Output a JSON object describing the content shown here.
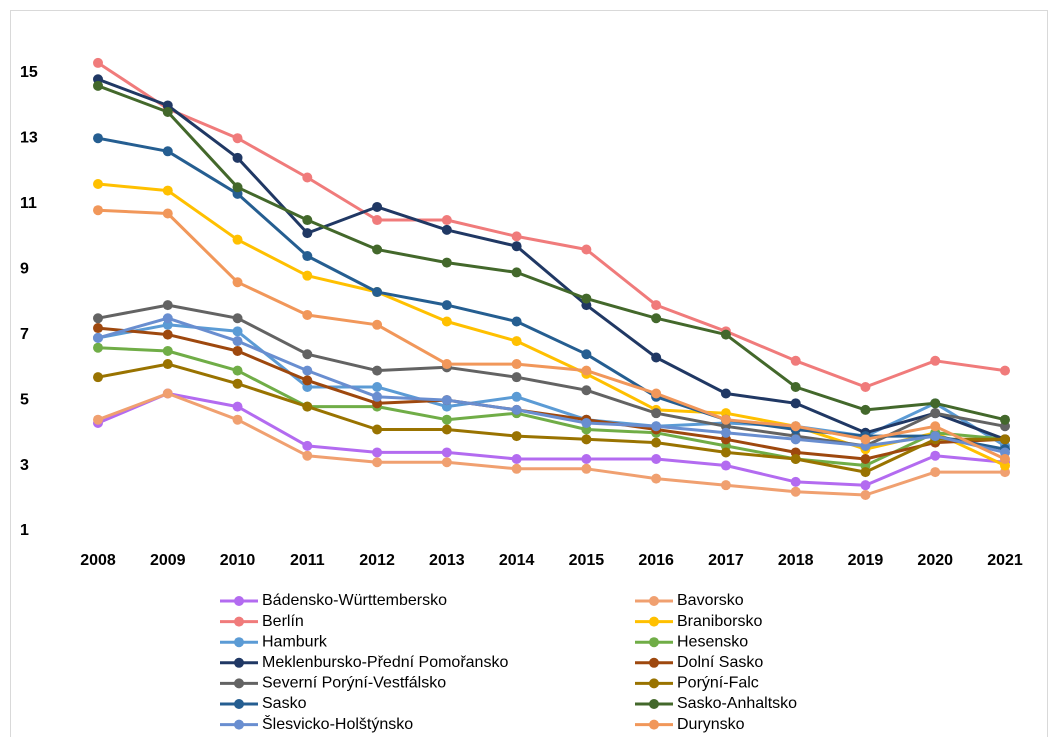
{
  "chart_data": {
    "type": "line",
    "categories": [
      "2008",
      "2009",
      "2010",
      "2011",
      "2012",
      "2013",
      "2014",
      "2015",
      "2016",
      "2017",
      "2018",
      "2019",
      "2020",
      "2021"
    ],
    "ylim": [
      1,
      16
    ],
    "yticks": [
      1,
      3,
      5,
      7,
      9,
      11,
      13,
      15
    ],
    "grid": false,
    "series": [
      {
        "name": "Bádensko-Württembersko",
        "color": "#b36bf0",
        "values": [
          4.3,
          5.2,
          4.8,
          3.6,
          3.4,
          3.4,
          3.2,
          3.2,
          3.2,
          3.0,
          2.5,
          2.4,
          3.3,
          3.1
        ]
      },
      {
        "name": "Bavorsko",
        "color": "#f0a070",
        "values": [
          4.4,
          5.2,
          4.4,
          3.3,
          3.1,
          3.1,
          2.9,
          2.9,
          2.6,
          2.4,
          2.2,
          2.1,
          2.8,
          2.8
        ]
      },
      {
        "name": "Berlín",
        "color": "#f07b7b",
        "values": [
          15.3,
          13.9,
          13.0,
          11.8,
          10.5,
          10.5,
          10.0,
          9.6,
          7.9,
          7.1,
          6.2,
          5.4,
          6.2,
          5.9
        ]
      },
      {
        "name": "Braniborsko",
        "color": "#ffc000",
        "values": [
          11.6,
          11.4,
          9.9,
          8.8,
          8.3,
          7.4,
          6.8,
          5.8,
          4.7,
          4.6,
          4.2,
          3.5,
          4.0,
          3.0
        ]
      },
      {
        "name": "Hamburk",
        "color": "#5b9bd5",
        "values": [
          6.9,
          7.3,
          7.1,
          5.4,
          5.4,
          4.8,
          5.1,
          4.4,
          4.2,
          4.3,
          4.2,
          3.9,
          4.9,
          3.6
        ]
      },
      {
        "name": "Hesensko",
        "color": "#70ad47",
        "values": [
          6.6,
          6.5,
          5.9,
          4.8,
          4.8,
          4.4,
          4.6,
          4.1,
          4.0,
          3.6,
          3.2,
          3.0,
          4.0,
          3.8
        ]
      },
      {
        "name": "Meklenbursko-Přední Pomořansko",
        "color": "#203864",
        "values": [
          14.8,
          14.0,
          12.4,
          10.1,
          10.9,
          10.2,
          9.7,
          7.9,
          6.3,
          5.2,
          4.9,
          4.0,
          4.6,
          3.8
        ]
      },
      {
        "name": "Dolní Sasko",
        "color": "#9e480e",
        "values": [
          7.2,
          7.0,
          6.5,
          5.6,
          4.9,
          5.0,
          4.7,
          4.4,
          4.1,
          3.8,
          3.4,
          3.2,
          3.7,
          3.8
        ]
      },
      {
        "name": "Severní Porýní-Vestfálsko",
        "color": "#636363",
        "values": [
          7.5,
          7.9,
          7.5,
          6.4,
          5.9,
          6.0,
          5.7,
          5.3,
          4.6,
          4.2,
          3.9,
          3.6,
          4.6,
          4.2
        ]
      },
      {
        "name": "Porýní-Falc",
        "color": "#997300",
        "values": [
          5.7,
          6.1,
          5.5,
          4.8,
          4.1,
          4.1,
          3.9,
          3.8,
          3.7,
          3.4,
          3.2,
          2.8,
          3.8,
          3.8
        ]
      },
      {
        "name": "Sasko",
        "color": "#255e91",
        "values": [
          13.0,
          12.6,
          11.3,
          9.4,
          8.3,
          7.9,
          7.4,
          6.4,
          5.1,
          4.4,
          4.1,
          3.9,
          3.9,
          3.5
        ]
      },
      {
        "name": "Sasko-Anhaltsko",
        "color": "#43682b",
        "values": [
          14.6,
          13.8,
          11.5,
          10.5,
          9.6,
          9.2,
          8.9,
          8.1,
          7.5,
          7.0,
          5.4,
          4.7,
          4.9,
          4.4
        ]
      },
      {
        "name": "Šlesvicko-Holštýnsko",
        "color": "#698ed0",
        "values": [
          6.9,
          7.5,
          6.8,
          5.9,
          5.1,
          5.0,
          4.7,
          4.3,
          4.2,
          4.0,
          3.8,
          3.6,
          3.9,
          3.4
        ]
      },
      {
        "name": "Durynsko",
        "color": "#f1975a",
        "values": [
          10.8,
          10.7,
          8.6,
          7.6,
          7.3,
          6.1,
          6.1,
          5.9,
          5.2,
          4.4,
          4.2,
          3.8,
          4.2,
          3.2
        ]
      }
    ]
  }
}
